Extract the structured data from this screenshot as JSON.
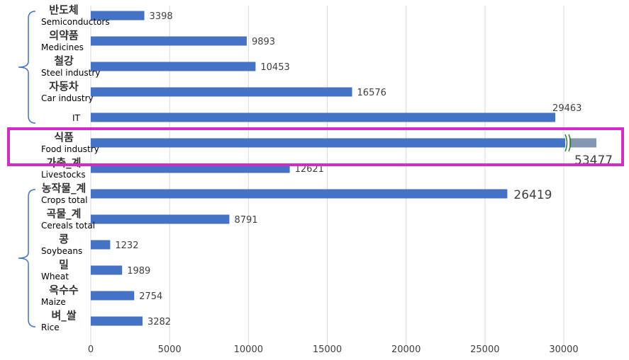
{
  "chart_data": {
    "type": "bar",
    "orientation": "horizontal",
    "title": "",
    "xlabel": "",
    "ylabel": "",
    "xlim": [
      0,
      32000
    ],
    "xticks": [
      0,
      5000,
      10000,
      15000,
      20000,
      25000,
      30000
    ],
    "grid": true,
    "categories": [
      {
        "ko": "반도체",
        "en": "Semiconductors"
      },
      {
        "ko": "의약품",
        "en": "Medicines"
      },
      {
        "ko": "철강",
        "en": "Steel industry"
      },
      {
        "ko": "자동차",
        "en": "Car industry"
      },
      {
        "ko": "",
        "en": "IT"
      },
      {
        "ko": "식품",
        "en": "Food industry"
      },
      {
        "ko": "가축_계",
        "en": "Livestocks"
      },
      {
        "ko": "농작물_계",
        "en": "Crops total"
      },
      {
        "ko": "곡물_계",
        "en": "Cereals total"
      },
      {
        "ko": "콩",
        "en": "Soybeans"
      },
      {
        "ko": "밀",
        "en": "Wheat"
      },
      {
        "ko": "옥수수",
        "en": "Maize"
      },
      {
        "ko": "벼_쌀",
        "en": "Rice"
      }
    ],
    "values": [
      3398,
      9893,
      10453,
      16576,
      29463,
      53477,
      12621,
      26419,
      8791,
      1232,
      1989,
      2754,
      3282
    ],
    "axis_break": {
      "category": "식품",
      "value": 53477
    },
    "highlighted": [
      {
        "category": "식품",
        "label": "53477",
        "color": "#c00000"
      },
      {
        "category": "농작물_계",
        "label": "26419",
        "color": "#c00000"
      }
    ],
    "highlight_box": {
      "category": "식품",
      "color": "#d42bc8"
    },
    "brace_groups": [
      {
        "from": "반도체",
        "to": "IT"
      },
      {
        "from": "농작물_계",
        "to": "벼_쌀"
      }
    ]
  },
  "colors": {
    "bar": "#4472c4",
    "bar_continuation": "#8497b0",
    "break_marks": "#2e7d32",
    "brace": "#4472c4",
    "grid": "#d9d9d9"
  }
}
